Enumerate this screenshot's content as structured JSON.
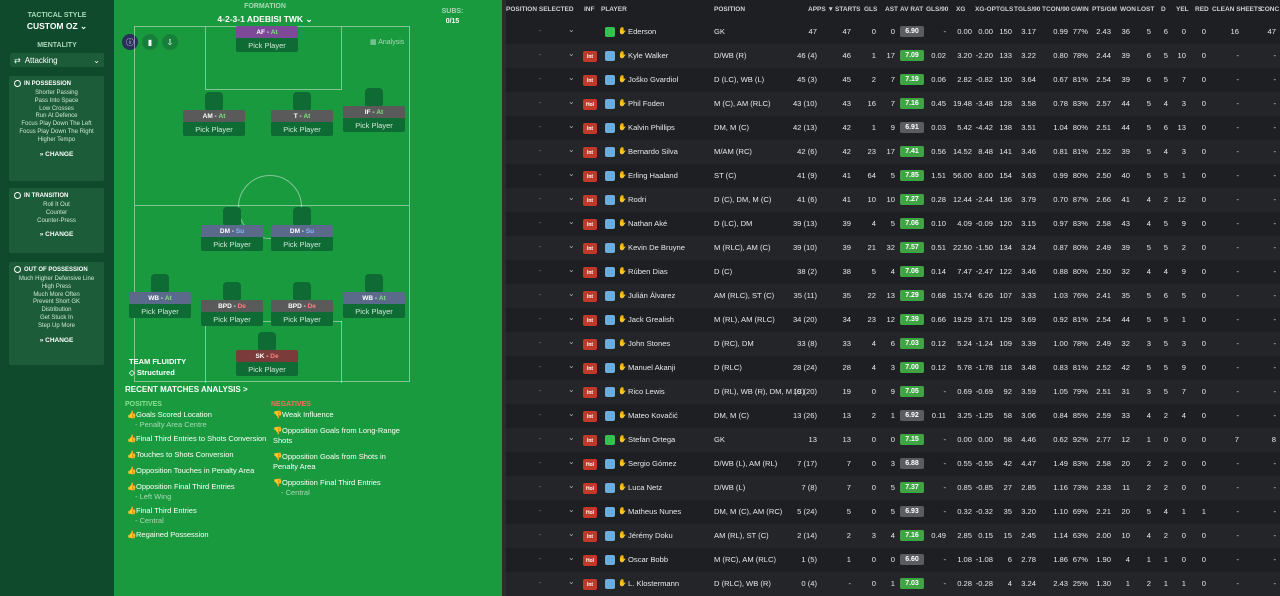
{
  "left": {
    "tactical_style_label": "TACTICAL STYLE",
    "tactical_style_value": "CUSTOM OZ",
    "mentality_label": "MENTALITY",
    "mentality_value": "Attacking",
    "in_possession": {
      "title": "IN POSSESSION",
      "items": [
        "Shorter Passing",
        "Pass Into Space",
        "Low Crosses",
        "Run At Defence",
        "Focus Play Down The Left",
        "Focus Play Down The Right",
        "Higher Tempo"
      ],
      "change": "CHANGE"
    },
    "in_transition": {
      "title": "IN TRANSITION",
      "items": [
        "Roll It Out",
        "Counter",
        "Counter-Press"
      ],
      "change": "CHANGE"
    },
    "out_of_possession": {
      "title": "OUT OF POSSESSION",
      "items": [
        "Much Higher Defensive Line",
        "High Press",
        "Much More Often",
        "Prevent Short GK",
        "Distribution",
        "Get Stuck In",
        "Step Up More"
      ],
      "change": "CHANGE"
    }
  },
  "formation": {
    "label": "FORMATION",
    "value": "4-2-3-1 ADEBISI TWK",
    "subs_label": "SUBS:",
    "subs_value": "0/15",
    "analysis_label": "Analysis",
    "pick_label": "Pick Player",
    "positions": [
      {
        "role": "AF",
        "duty": "At"
      },
      {
        "role": "AM",
        "duty": "At"
      },
      {
        "role": "T",
        "duty": "At"
      },
      {
        "role": "IF",
        "duty": "At"
      },
      {
        "role": "DM",
        "duty": "Su"
      },
      {
        "role": "DM",
        "duty": "Su"
      },
      {
        "role": "WB",
        "duty": "At"
      },
      {
        "role": "BPD",
        "duty": "De"
      },
      {
        "role": "BPD",
        "duty": "De"
      },
      {
        "role": "WB",
        "duty": "At"
      },
      {
        "role": "SK",
        "duty": "De"
      }
    ],
    "team_fluidity_label": "TEAM FLUIDITY",
    "team_fluidity_value": "Structured"
  },
  "analysis": {
    "title": "RECENT MATCHES ANALYSIS >",
    "positives_label": "POSITIVES",
    "negatives_label": "NEGATIVES",
    "positives": [
      {
        "text": "Goals Scored Location",
        "sub": "Penalty Area Centre"
      },
      {
        "text": "Final Third Entries to Shots Conversion",
        "sub": ""
      },
      {
        "text": "Touches to Shots Conversion",
        "sub": ""
      },
      {
        "text": "Opposition Touches in Penalty Area",
        "sub": ""
      },
      {
        "text": "Opposition Final Third Entries",
        "sub": "Left Wing"
      },
      {
        "text": "Final Third Entries",
        "sub": "Central"
      },
      {
        "text": "Regained Possession",
        "sub": ""
      }
    ],
    "negatives": [
      {
        "text": "Weak Influence",
        "sub": ""
      },
      {
        "text": "Opposition Goals from Long-Range Shots",
        "sub": ""
      },
      {
        "text": "Opposition Goals from Shots in Penalty Area",
        "sub": ""
      },
      {
        "text": "Opposition Final Third Entries",
        "sub": "Central"
      }
    ]
  },
  "table": {
    "headers": [
      "POSITION SELECTED",
      "INF",
      "PLAYER",
      "POSITION",
      "APPS ▼",
      "STARTS",
      "GLS",
      "AST",
      "AV RAT",
      "GLS/90",
      "XG",
      "XG-OP",
      "TGLS",
      "TGLS/90",
      "TCON/90",
      "GWIN",
      "PTS/GM",
      "WON",
      "LOST",
      "D",
      "YEL",
      "RED",
      "CLEAN SHEETS",
      "CONC"
    ],
    "rows": [
      {
        "badge": "",
        "name": "Ederson",
        "pos": "GK",
        "apps": "47",
        "starts": "47",
        "gls": "0",
        "ast": "0",
        "rat": "6.90",
        "gls90": "-",
        "xg": "0.00",
        "xgop": "0.00",
        "tgls": "150",
        "tgls90": "3.17",
        "tcon": "0.99",
        "gwin": "77%",
        "ptsgm": "2.43",
        "won": "36",
        "lost": "5",
        "d": "6",
        "yel": "0",
        "red": "0",
        "cs": "16",
        "conc": "47"
      },
      {
        "badge": "Int",
        "name": "Kyle Walker",
        "pos": "D/WB (R)",
        "apps": "46 (4)",
        "starts": "46",
        "gls": "1",
        "ast": "17",
        "rat": "7.09",
        "gls90": "0.02",
        "xg": "3.20",
        "xgop": "-2.20",
        "tgls": "133",
        "tgls90": "3.22",
        "tcon": "0.80",
        "gwin": "78%",
        "ptsgm": "2.44",
        "won": "39",
        "lost": "6",
        "d": "5",
        "yel": "10",
        "red": "0",
        "cs": "-",
        "conc": "-"
      },
      {
        "badge": "Int",
        "name": "Joško Gvardiol",
        "pos": "D (LC), WB (L)",
        "apps": "45 (3)",
        "starts": "45",
        "gls": "2",
        "ast": "7",
        "rat": "7.19",
        "gls90": "0.06",
        "xg": "2.82",
        "xgop": "-0.82",
        "tgls": "130",
        "tgls90": "3.64",
        "tcon": "0.67",
        "gwin": "81%",
        "ptsgm": "2.54",
        "won": "39",
        "lost": "6",
        "d": "5",
        "yel": "7",
        "red": "0",
        "cs": "-",
        "conc": "-"
      },
      {
        "badge": "Hol",
        "name": "Phil Foden",
        "pos": "M (C), AM (RLC)",
        "apps": "43 (10)",
        "starts": "43",
        "gls": "16",
        "ast": "7",
        "rat": "7.16",
        "gls90": "0.45",
        "xg": "19.48",
        "xgop": "-3.48",
        "tgls": "128",
        "tgls90": "3.58",
        "tcon": "0.78",
        "gwin": "83%",
        "ptsgm": "2.57",
        "won": "44",
        "lost": "5",
        "d": "4",
        "yel": "3",
        "red": "0",
        "cs": "-",
        "conc": "-"
      },
      {
        "badge": "Int",
        "name": "Kalvin Phillips",
        "pos": "DM, M (C)",
        "apps": "42 (13)",
        "starts": "42",
        "gls": "1",
        "ast": "9",
        "rat": "6.91",
        "gls90": "0.03",
        "xg": "5.42",
        "xgop": "-4.42",
        "tgls": "138",
        "tgls90": "3.51",
        "tcon": "1.04",
        "gwin": "80%",
        "ptsgm": "2.51",
        "won": "44",
        "lost": "5",
        "d": "6",
        "yel": "13",
        "red": "0",
        "cs": "-",
        "conc": "-"
      },
      {
        "badge": "Int",
        "name": "Bernardo Silva",
        "pos": "M/AM (RC)",
        "apps": "42 (6)",
        "starts": "42",
        "gls": "23",
        "ast": "17",
        "rat": "7.41",
        "gls90": "0.56",
        "xg": "14.52",
        "xgop": "8.48",
        "tgls": "141",
        "tgls90": "3.46",
        "tcon": "0.81",
        "gwin": "81%",
        "ptsgm": "2.52",
        "won": "39",
        "lost": "5",
        "d": "4",
        "yel": "3",
        "red": "0",
        "cs": "-",
        "conc": "-"
      },
      {
        "badge": "Int",
        "name": "Erling Haaland",
        "pos": "ST (C)",
        "apps": "41 (9)",
        "starts": "41",
        "gls": "64",
        "ast": "5",
        "rat": "7.85",
        "gls90": "1.51",
        "xg": "56.00",
        "xgop": "8.00",
        "tgls": "154",
        "tgls90": "3.63",
        "tcon": "0.99",
        "gwin": "80%",
        "ptsgm": "2.50",
        "won": "40",
        "lost": "5",
        "d": "5",
        "yel": "1",
        "red": "0",
        "cs": "-",
        "conc": "-"
      },
      {
        "badge": "Int",
        "name": "Rodri",
        "pos": "D (C), DM, M (C)",
        "apps": "41 (6)",
        "starts": "41",
        "gls": "10",
        "ast": "10",
        "rat": "7.27",
        "gls90": "0.28",
        "xg": "12.44",
        "xgop": "-2.44",
        "tgls": "136",
        "tgls90": "3.79",
        "tcon": "0.70",
        "gwin": "87%",
        "ptsgm": "2.66",
        "won": "41",
        "lost": "4",
        "d": "2",
        "yel": "12",
        "red": "0",
        "cs": "-",
        "conc": "-"
      },
      {
        "badge": "Int",
        "name": "Nathan Aké",
        "pos": "D (LC), DM",
        "apps": "39 (13)",
        "starts": "39",
        "gls": "4",
        "ast": "5",
        "rat": "7.06",
        "gls90": "0.10",
        "xg": "4.09",
        "xgop": "-0.09",
        "tgls": "120",
        "tgls90": "3.15",
        "tcon": "0.97",
        "gwin": "83%",
        "ptsgm": "2.58",
        "won": "43",
        "lost": "4",
        "d": "5",
        "yel": "9",
        "red": "0",
        "cs": "-",
        "conc": "-"
      },
      {
        "badge": "Int",
        "name": "Kevin De Bruyne",
        "pos": "M (RLC), AM (C)",
        "apps": "39 (10)",
        "starts": "39",
        "gls": "21",
        "ast": "32",
        "rat": "7.57",
        "gls90": "0.51",
        "xg": "22.50",
        "xgop": "-1.50",
        "tgls": "134",
        "tgls90": "3.24",
        "tcon": "0.87",
        "gwin": "80%",
        "ptsgm": "2.49",
        "won": "39",
        "lost": "5",
        "d": "5",
        "yel": "2",
        "red": "0",
        "cs": "-",
        "conc": "-"
      },
      {
        "badge": "Int",
        "name": "Rúben Dias",
        "pos": "D (C)",
        "apps": "38 (2)",
        "starts": "38",
        "gls": "5",
        "ast": "4",
        "rat": "7.06",
        "gls90": "0.14",
        "xg": "7.47",
        "xgop": "-2.47",
        "tgls": "122",
        "tgls90": "3.46",
        "tcon": "0.88",
        "gwin": "80%",
        "ptsgm": "2.50",
        "won": "32",
        "lost": "4",
        "d": "4",
        "yel": "9",
        "red": "0",
        "cs": "-",
        "conc": "-"
      },
      {
        "badge": "Int",
        "name": "Julián Álvarez",
        "pos": "AM (RLC), ST (C)",
        "apps": "35 (11)",
        "starts": "35",
        "gls": "22",
        "ast": "13",
        "rat": "7.29",
        "gls90": "0.68",
        "xg": "15.74",
        "xgop": "6.26",
        "tgls": "107",
        "tgls90": "3.33",
        "tcon": "1.03",
        "gwin": "76%",
        "ptsgm": "2.41",
        "won": "35",
        "lost": "5",
        "d": "6",
        "yel": "5",
        "red": "0",
        "cs": "-",
        "conc": "-"
      },
      {
        "badge": "Int",
        "name": "Jack Grealish",
        "pos": "M (RL), AM (RLC)",
        "apps": "34 (20)",
        "starts": "34",
        "gls": "23",
        "ast": "12",
        "rat": "7.39",
        "gls90": "0.66",
        "xg": "19.29",
        "xgop": "3.71",
        "tgls": "129",
        "tgls90": "3.69",
        "tcon": "0.92",
        "gwin": "81%",
        "ptsgm": "2.54",
        "won": "44",
        "lost": "5",
        "d": "5",
        "yel": "1",
        "red": "0",
        "cs": "-",
        "conc": "-"
      },
      {
        "badge": "Int",
        "name": "John Stones",
        "pos": "D (RC), DM",
        "apps": "33 (8)",
        "starts": "33",
        "gls": "4",
        "ast": "6",
        "rat": "7.03",
        "gls90": "0.12",
        "xg": "5.24",
        "xgop": "-1.24",
        "tgls": "109",
        "tgls90": "3.39",
        "tcon": "1.00",
        "gwin": "78%",
        "ptsgm": "2.49",
        "won": "32",
        "lost": "3",
        "d": "5",
        "yel": "3",
        "red": "0",
        "cs": "-",
        "conc": "-"
      },
      {
        "badge": "Int",
        "name": "Manuel Akanji",
        "pos": "D (RLC)",
        "apps": "28 (24)",
        "starts": "28",
        "gls": "4",
        "ast": "3",
        "rat": "7.00",
        "gls90": "0.12",
        "xg": "5.78",
        "xgop": "-1.78",
        "tgls": "118",
        "tgls90": "3.48",
        "tcon": "0.83",
        "gwin": "81%",
        "ptsgm": "2.52",
        "won": "42",
        "lost": "5",
        "d": "5",
        "yel": "9",
        "red": "0",
        "cs": "-",
        "conc": "-"
      },
      {
        "badge": "Int",
        "name": "Rico Lewis",
        "pos": "D (RL), WB (R), DM, M (C)",
        "apps": "19 (20)",
        "starts": "19",
        "gls": "0",
        "ast": "9",
        "rat": "7.05",
        "gls90": "-",
        "xg": "0.69",
        "xgop": "-0.69",
        "tgls": "92",
        "tgls90": "3.59",
        "tcon": "1.05",
        "gwin": "79%",
        "ptsgm": "2.51",
        "won": "31",
        "lost": "3",
        "d": "5",
        "yel": "7",
        "red": "0",
        "cs": "-",
        "conc": "-"
      },
      {
        "badge": "Int",
        "name": "Mateo Kovačić",
        "pos": "DM, M (C)",
        "apps": "13 (26)",
        "starts": "13",
        "gls": "2",
        "ast": "1",
        "rat": "6.92",
        "gls90": "0.11",
        "xg": "3.25",
        "xgop": "-1.25",
        "tgls": "58",
        "tgls90": "3.06",
        "tcon": "0.84",
        "gwin": "85%",
        "ptsgm": "2.59",
        "won": "33",
        "lost": "4",
        "d": "2",
        "yel": "4",
        "red": "0",
        "cs": "-",
        "conc": "-"
      },
      {
        "badge": "Int",
        "name": "Stefan Ortega",
        "pos": "GK",
        "apps": "13",
        "starts": "13",
        "gls": "0",
        "ast": "0",
        "rat": "7.15",
        "gls90": "-",
        "xg": "0.00",
        "xgop": "0.00",
        "tgls": "58",
        "tgls90": "4.46",
        "tcon": "0.62",
        "gwin": "92%",
        "ptsgm": "2.77",
        "won": "12",
        "lost": "1",
        "d": "0",
        "yel": "0",
        "red": "0",
        "cs": "7",
        "conc": "8"
      },
      {
        "badge": "Hol",
        "name": "Sergio Gómez",
        "pos": "D/WB (L), AM (RL)",
        "apps": "7 (17)",
        "starts": "7",
        "gls": "0",
        "ast": "3",
        "rat": "6.88",
        "gls90": "-",
        "xg": "0.55",
        "xgop": "-0.55",
        "tgls": "42",
        "tgls90": "4.47",
        "tcon": "1.49",
        "gwin": "83%",
        "ptsgm": "2.58",
        "won": "20",
        "lost": "2",
        "d": "2",
        "yel": "0",
        "red": "0",
        "cs": "-",
        "conc": "-"
      },
      {
        "badge": "Hol",
        "name": "Luca Netz",
        "pos": "D/WB (L)",
        "apps": "7 (8)",
        "starts": "7",
        "gls": "0",
        "ast": "5",
        "rat": "7.37",
        "gls90": "-",
        "xg": "0.85",
        "xgop": "-0.85",
        "tgls": "27",
        "tgls90": "2.85",
        "tcon": "1.16",
        "gwin": "73%",
        "ptsgm": "2.33",
        "won": "11",
        "lost": "2",
        "d": "2",
        "yel": "0",
        "red": "0",
        "cs": "-",
        "conc": "-"
      },
      {
        "badge": "Hol",
        "name": "Matheus Nunes",
        "pos": "DM, M (C), AM (RC)",
        "apps": "5 (24)",
        "starts": "5",
        "gls": "0",
        "ast": "5",
        "rat": "6.93",
        "gls90": "-",
        "xg": "0.32",
        "xgop": "-0.32",
        "tgls": "35",
        "tgls90": "3.20",
        "tcon": "1.10",
        "gwin": "69%",
        "ptsgm": "2.21",
        "won": "20",
        "lost": "5",
        "d": "4",
        "yel": "1",
        "red": "1",
        "cs": "-",
        "conc": "-"
      },
      {
        "badge": "Int",
        "name": "Jérémy Doku",
        "pos": "AM (RL), ST (C)",
        "apps": "2 (14)",
        "starts": "2",
        "gls": "3",
        "ast": "4",
        "rat": "7.16",
        "gls90": "0.49",
        "xg": "2.85",
        "xgop": "0.15",
        "tgls": "15",
        "tgls90": "2.45",
        "tcon": "1.14",
        "gwin": "63%",
        "ptsgm": "2.00",
        "won": "10",
        "lost": "4",
        "d": "2",
        "yel": "0",
        "red": "0",
        "cs": "-",
        "conc": "-"
      },
      {
        "badge": "Hol",
        "name": "Oscar Bobb",
        "pos": "M (RC), AM (RLC)",
        "apps": "1 (5)",
        "starts": "1",
        "gls": "0",
        "ast": "0",
        "rat": "6.60",
        "gls90": "-",
        "xg": "1.08",
        "xgop": "-1.08",
        "tgls": "6",
        "tgls90": "2.78",
        "tcon": "1.86",
        "gwin": "67%",
        "ptsgm": "1.90",
        "won": "4",
        "lost": "1",
        "d": "1",
        "yel": "0",
        "red": "0",
        "cs": "-",
        "conc": "-"
      },
      {
        "badge": "Int",
        "name": "L. Klostermann",
        "pos": "D (RLC), WB (R)",
        "apps": "0 (4)",
        "starts": "-",
        "gls": "0",
        "ast": "1",
        "rat": "7.03",
        "gls90": "-",
        "xg": "0.28",
        "xgop": "-0.28",
        "tgls": "4",
        "tgls90": "3.24",
        "tcon": "2.43",
        "gwin": "25%",
        "ptsgm": "1.30",
        "won": "1",
        "lost": "2",
        "d": "1",
        "yel": "1",
        "red": "0",
        "cs": "-",
        "conc": "-"
      }
    ]
  },
  "colors": {
    "pitch": "#1a9a3e",
    "left_panel": "#0f4a2c",
    "rating_green": "#3fa544",
    "rating_grey": "#5b5c60",
    "badge_red": "#c0392b"
  }
}
